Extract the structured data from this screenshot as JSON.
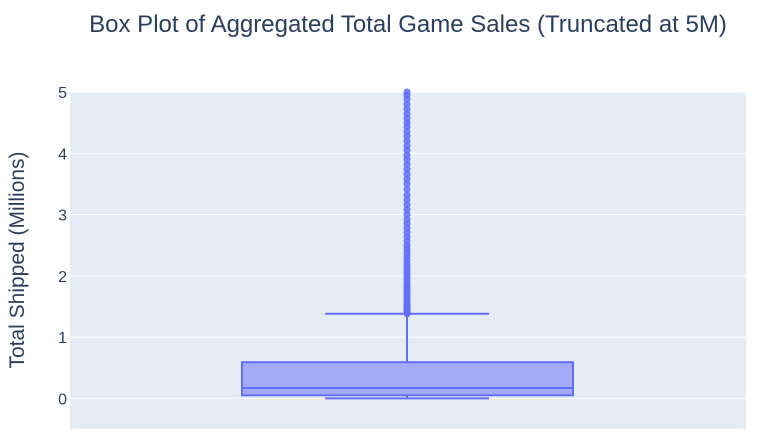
{
  "chart_data": {
    "type": "box",
    "title": "Box Plot of Aggregated Total Game Sales (Truncated at 5M)",
    "xlabel": "",
    "ylabel": "Total Shipped (Millions)",
    "ylim": [
      -0.5,
      5
    ],
    "yticks": [
      0,
      1,
      2,
      3,
      4,
      5
    ],
    "grid": true,
    "box": {
      "min": 0.0,
      "q1": 0.05,
      "median": 0.17,
      "q3": 0.59,
      "upper_fence": 1.38,
      "mean": 0.0
    },
    "outliers": [
      1.38,
      1.4,
      1.42,
      1.45,
      1.48,
      1.5,
      1.53,
      1.56,
      1.6,
      1.63,
      1.67,
      1.7,
      1.74,
      1.78,
      1.82,
      1.86,
      1.9,
      1.95,
      2.0,
      2.05,
      2.1,
      2.15,
      2.2,
      2.26,
      2.32,
      2.38,
      2.44,
      2.5,
      2.57,
      2.64,
      2.71,
      2.78,
      2.85,
      2.92,
      3.0,
      3.08,
      3.16,
      3.24,
      3.32,
      3.41,
      3.5,
      3.58,
      3.66,
      3.74,
      3.82,
      3.9,
      3.97,
      4.05,
      4.12,
      4.2,
      4.28,
      4.35,
      4.43,
      4.5,
      4.57,
      4.64,
      4.72,
      4.8,
      4.88,
      4.95,
      5.0
    ],
    "colors": {
      "box_line": "#636efa",
      "box_fill": "#a3aaf7",
      "plot_bg": "#e5ecf6",
      "grid": "#ffffff",
      "text": "#2a3f5f"
    }
  }
}
